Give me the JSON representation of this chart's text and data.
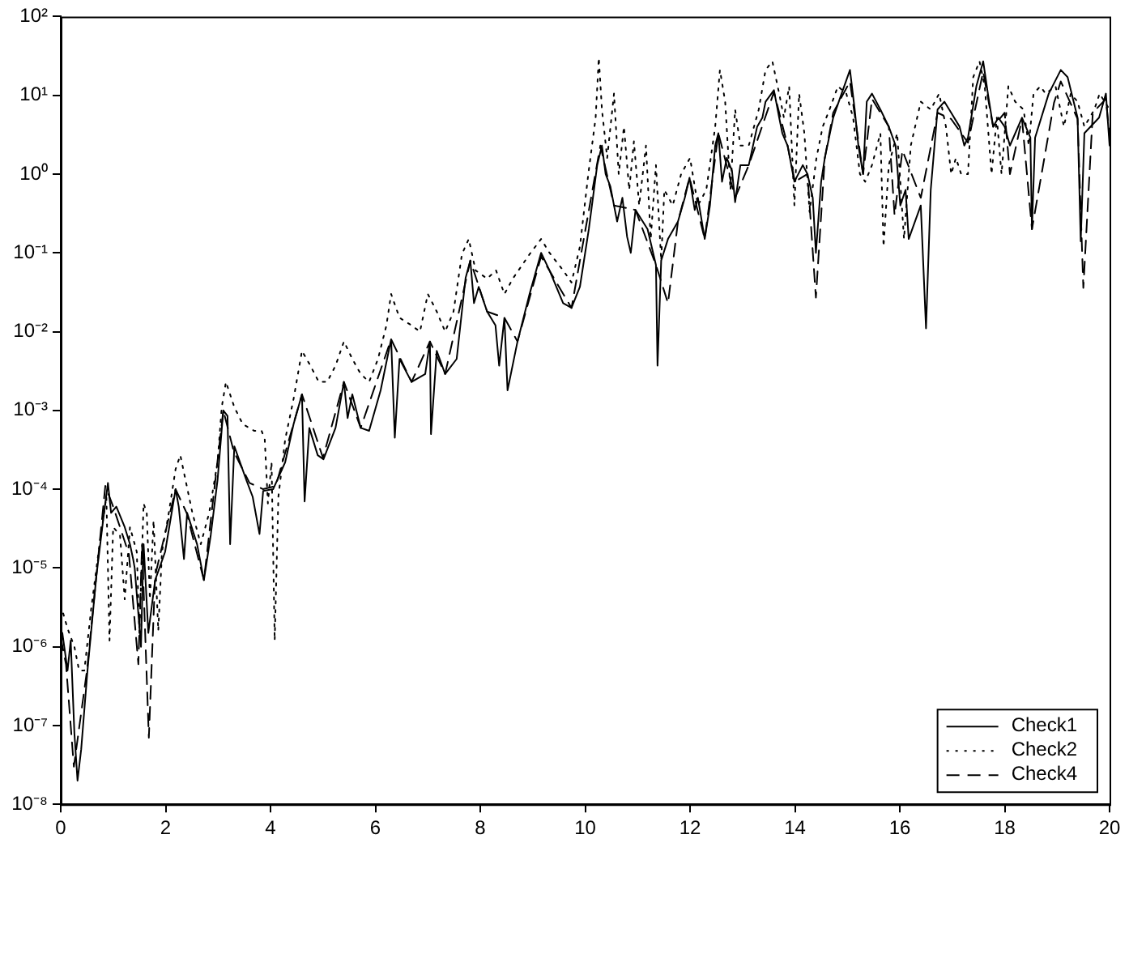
{
  "chart_data": {
    "type": "line",
    "log": "y",
    "grid": false,
    "legend": "bottom right",
    "marker": "none",
    "xlim": [
      0,
      20
    ],
    "xticks": [
      0,
      2,
      4,
      6,
      8,
      10,
      12,
      14,
      16,
      18,
      20
    ],
    "ylim": [
      1e-08,
      100
    ],
    "yticks": [
      {
        "value": 1e-08,
        "label": "10⁻⁸"
      },
      {
        "value": 1e-07,
        "label": "10⁻⁷"
      },
      {
        "value": 1e-06,
        "label": "10⁻⁶"
      },
      {
        "value": 1e-05,
        "label": "10⁻⁵"
      },
      {
        "value": 0.0001,
        "label": "10⁻⁴"
      },
      {
        "value": 0.001,
        "label": "10⁻³"
      },
      {
        "value": 0.01,
        "label": "10⁻²"
      },
      {
        "value": 0.1,
        "label": "10⁻¹"
      },
      {
        "value": 1,
        "label": "10⁰"
      },
      {
        "value": 10,
        "label": "10¹"
      },
      {
        "value": 100,
        "label": "10²"
      }
    ],
    "series": [
      {
        "name": "Check1",
        "color": "#000000",
        "line_style": "solid",
        "x": [
          0.03,
          0.13,
          0.19,
          0.26,
          0.32,
          0.39,
          0.51,
          0.68,
          0.84,
          0.9,
          0.96,
          1.06,
          1.22,
          1.32,
          1.38,
          1.41,
          1.53,
          1.58,
          1.67,
          1.8,
          1.99,
          2.19,
          2.25,
          2.35,
          2.41,
          2.6,
          2.73,
          2.86,
          2.99,
          3.1,
          3.18,
          3.23,
          3.31,
          3.54,
          3.66,
          3.79,
          3.86,
          4.05,
          4.28,
          4.44,
          4.6,
          4.65,
          4.74,
          4.9,
          5.01,
          5.24,
          5.4,
          5.47,
          5.56,
          5.72,
          5.88,
          6.1,
          6.3,
          6.37,
          6.46,
          6.69,
          6.95,
          7.04,
          7.06,
          7.17,
          7.33,
          7.55,
          7.72,
          7.81,
          7.88,
          7.97,
          8.13,
          8.29,
          8.36,
          8.46,
          8.52,
          8.71,
          8.94,
          9.16,
          9.32,
          9.58,
          9.74,
          9.9,
          10.07,
          10.23,
          10.32,
          10.39,
          10.48,
          10.55,
          10.61,
          10.71,
          10.8,
          10.87,
          10.96,
          11.19,
          11.35,
          11.38,
          11.45,
          11.58,
          11.77,
          11.9,
          11.99,
          12.09,
          12.15,
          12.28,
          12.38,
          12.48,
          12.54,
          12.61,
          12.7,
          12.8,
          12.86,
          12.96,
          13.12,
          13.28,
          13.38,
          13.44,
          13.6,
          13.7,
          13.76,
          13.86,
          13.99,
          14.15,
          14.24,
          14.34,
          14.4,
          14.5,
          14.57,
          14.73,
          14.89,
          15.05,
          15.14,
          15.21,
          15.3,
          15.37,
          15.47,
          15.63,
          15.79,
          15.92,
          16.01,
          16.11,
          16.17,
          16.4,
          16.5,
          16.59,
          16.72,
          16.85,
          16.98,
          17.14,
          17.23,
          17.3,
          17.46,
          17.59,
          17.68,
          17.78,
          17.88,
          18.0,
          18.1,
          18.33,
          18.49,
          18.52,
          18.58,
          18.84,
          19.07,
          19.2,
          19.39,
          19.45,
          19.52,
          19.8,
          19.93,
          20.0
        ],
        "values": [
          1.5e-06,
          5e-07,
          1.2e-06,
          8e-08,
          2e-08,
          5e-08,
          5e-07,
          8e-06,
          6e-05,
          0.00012,
          5e-05,
          6e-05,
          3.3e-05,
          2e-05,
          1.3e-05,
          1e-05,
          1e-06,
          2e-05,
          1.5e-06,
          7e-06,
          1.6e-05,
          0.0001,
          6e-05,
          1.3e-05,
          5e-05,
          2e-05,
          7e-06,
          2.6e-05,
          0.00013,
          0.001,
          0.00085,
          2e-05,
          0.00035,
          0.00013,
          8e-05,
          2.7e-05,
          9.5e-05,
          0.0001,
          0.00022,
          0.00067,
          0.0016,
          7e-05,
          0.0006,
          0.00027,
          0.00024,
          0.0006,
          0.0023,
          0.0008,
          0.0016,
          0.0006,
          0.00055,
          0.0018,
          0.008,
          0.00045,
          0.0045,
          0.0023,
          0.0029,
          0.0075,
          0.0005,
          0.0057,
          0.0029,
          0.0045,
          0.048,
          0.08,
          0.023,
          0.037,
          0.018,
          0.012,
          0.0037,
          0.015,
          0.0018,
          0.0075,
          0.03,
          0.1,
          0.06,
          0.023,
          0.02,
          0.037,
          0.2,
          1.3,
          2.3,
          1.0,
          0.7,
          0.4,
          0.25,
          0.5,
          0.16,
          0.1,
          0.35,
          0.2,
          0.07,
          0.0037,
          0.08,
          0.15,
          0.25,
          0.5,
          0.9,
          0.35,
          0.5,
          0.15,
          0.4,
          2.3,
          3.3,
          0.8,
          1.6,
          1.1,
          0.44,
          1.3,
          1.3,
          4,
          5.2,
          8.3,
          11.6,
          5.2,
          3.3,
          2.3,
          0.8,
          1.3,
          1.0,
          0.5,
          0.1,
          0.8,
          1.6,
          5.2,
          10.5,
          21,
          6.6,
          2.3,
          1.0,
          8.3,
          10.5,
          6.6,
          4,
          2.3,
          0.4,
          0.63,
          0.15,
          0.4,
          0.011,
          0.63,
          6.6,
          8.3,
          6,
          4,
          2.3,
          2.9,
          13,
          27,
          10.5,
          4,
          5.2,
          4,
          2.3,
          5.2,
          2.9,
          0.2,
          2.9,
          10.5,
          21,
          17,
          5.2,
          0.14,
          3.3,
          5.2,
          10.5,
          2.3
        ]
      },
      {
        "name": "Check2",
        "color": "#000000",
        "line_style": "dotted",
        "x": [
          0.0,
          0.13,
          0.26,
          0.35,
          0.45,
          0.58,
          0.74,
          0.87,
          0.93,
          1.0,
          1.13,
          1.22,
          1.32,
          1.45,
          1.5,
          1.58,
          1.64,
          1.7,
          1.77,
          1.86,
          1.93,
          2.06,
          2.19,
          2.28,
          2.38,
          2.51,
          2.67,
          2.83,
          2.99,
          3.07,
          3.15,
          3.31,
          3.47,
          3.69,
          3.83,
          3.89,
          3.95,
          4.02,
          4.08,
          4.15,
          4.28,
          4.44,
          4.6,
          4.76,
          4.92,
          5.08,
          5.24,
          5.4,
          5.56,
          5.72,
          5.88,
          6.05,
          6.21,
          6.3,
          6.46,
          6.69,
          6.85,
          7.0,
          7.17,
          7.33,
          7.49,
          7.65,
          7.78,
          7.91,
          8.13,
          8.3,
          8.46,
          8.62,
          8.94,
          9.16,
          9.32,
          9.58,
          9.74,
          9.9,
          10.06,
          10.2,
          10.26,
          10.32,
          10.42,
          10.55,
          10.64,
          10.74,
          10.84,
          10.93,
          11.03,
          11.16,
          11.25,
          11.35,
          11.45,
          11.51,
          11.67,
          11.83,
          12.0,
          12.15,
          12.31,
          12.48,
          12.57,
          12.67,
          12.77,
          12.86,
          12.96,
          13.12,
          13.31,
          13.44,
          13.57,
          13.7,
          13.79,
          13.89,
          13.99,
          14.08,
          14.18,
          14.28,
          14.41,
          14.53,
          14.66,
          14.82,
          14.98,
          15.11,
          15.24,
          15.34,
          15.47,
          15.63,
          15.69,
          15.79,
          15.95,
          16.08,
          16.21,
          16.4,
          16.59,
          16.75,
          16.88,
          16.98,
          17.07,
          17.17,
          17.3,
          17.4,
          17.52,
          17.62,
          17.75,
          17.85,
          17.94,
          18.07,
          18.2,
          18.36,
          18.46,
          18.55,
          18.68,
          18.78,
          18.97,
          19.13,
          19.26,
          19.39,
          19.52,
          19.71,
          19.81,
          20.0
        ],
        "values": [
          3.4e-06,
          1.7e-06,
          1e-06,
          5e-07,
          5e-07,
          3e-06,
          2e-05,
          8e-05,
          1.2e-06,
          3.3e-05,
          2.6e-05,
          4e-06,
          3.3e-05,
          1.6e-05,
          1.5e-06,
          6.6e-05,
          5e-05,
          4e-06,
          4e-05,
          1.6e-06,
          1.6e-05,
          5e-05,
          0.00018,
          0.00027,
          0.00013,
          5e-05,
          2e-05,
          5e-05,
          0.00022,
          0.0011,
          0.0023,
          0.0011,
          0.00067,
          0.00055,
          0.00055,
          0.00043,
          6.6e-05,
          0.00022,
          1.2e-06,
          8e-05,
          0.00043,
          0.0014,
          0.0057,
          0.0037,
          0.0023,
          0.0023,
          0.0037,
          0.0075,
          0.0045,
          0.0029,
          0.0023,
          0.0045,
          0.012,
          0.03,
          0.015,
          0.012,
          0.01,
          0.03,
          0.018,
          0.01,
          0.018,
          0.096,
          0.15,
          0.06,
          0.047,
          0.06,
          0.03,
          0.047,
          0.096,
          0.15,
          0.1,
          0.06,
          0.042,
          0.12,
          1,
          5.2,
          30,
          6.6,
          1.6,
          10.5,
          1,
          4,
          0.63,
          2.6,
          0.4,
          2.3,
          0.15,
          1.3,
          0.08,
          0.63,
          0.4,
          1,
          1.6,
          0.4,
          0.63,
          4,
          21,
          8.3,
          0.63,
          6.6,
          2.3,
          2.3,
          6.6,
          21,
          27,
          10.5,
          5.2,
          13,
          0.4,
          10.5,
          3.3,
          0.33,
          1.6,
          4,
          6.6,
          13,
          10.5,
          5.2,
          1,
          0.8,
          1.3,
          3.3,
          0.12,
          1.3,
          3.3,
          0.15,
          2.3,
          8.3,
          6.6,
          10.5,
          4,
          1,
          1.6,
          1,
          1,
          17,
          27,
          13,
          1,
          5.2,
          1,
          13,
          8.3,
          6.6,
          2.3,
          10.5,
          13,
          10.5,
          13,
          4,
          10.5,
          8.3,
          4,
          6.6,
          10.5,
          6.6
        ]
      },
      {
        "name": "Check4",
        "color": "#000000",
        "line_style": "dashed",
        "x": [
          0.0,
          0.1,
          0.25,
          0.5,
          0.85,
          1.0,
          1.3,
          1.48,
          1.55,
          1.68,
          1.8,
          2.19,
          2.4,
          2.73,
          3.1,
          3.3,
          3.6,
          3.86,
          4.1,
          4.6,
          5.0,
          5.4,
          5.72,
          6.3,
          6.69,
          7.04,
          7.33,
          7.81,
          8.13,
          8.46,
          8.71,
          9.16,
          9.74,
          10.29,
          10.55,
          10.96,
          11.35,
          11.58,
          11.77,
          11.99,
          12.28,
          12.54,
          12.86,
          13.12,
          13.6,
          13.86,
          14.0,
          14.24,
          14.4,
          14.57,
          14.73,
          15.05,
          15.3,
          15.47,
          15.79,
          15.9,
          16.05,
          16.4,
          16.72,
          16.98,
          17.3,
          17.59,
          17.78,
          18.0,
          18.1,
          18.33,
          18.52,
          18.94,
          19.07,
          19.39,
          19.5,
          19.68,
          19.93,
          20.0
        ],
        "values": [
          1.3e-06,
          6e-07,
          3e-08,
          5e-07,
          0.00011,
          6e-05,
          1.5e-05,
          6e-07,
          2e-05,
          7e-08,
          8e-06,
          0.0001,
          5e-05,
          7e-06,
          0.001,
          0.0003,
          0.00012,
          0.0001,
          0.00011,
          0.0016,
          0.00025,
          0.0023,
          0.0006,
          0.008,
          0.0023,
          0.0075,
          0.0029,
          0.08,
          0.018,
          0.015,
          0.0075,
          0.09,
          0.02,
          2.3,
          0.4,
          0.35,
          0.07,
          0.023,
          0.25,
          0.9,
          0.15,
          3.3,
          0.5,
          1.3,
          11,
          2.3,
          0.8,
          1,
          0.027,
          1.6,
          6,
          15,
          1,
          9,
          4,
          0.3,
          2,
          0.5,
          6,
          5,
          2.5,
          20,
          4,
          6,
          1,
          5,
          0.2,
          8,
          15,
          5,
          0.036,
          6,
          9,
          3
        ]
      }
    ]
  }
}
